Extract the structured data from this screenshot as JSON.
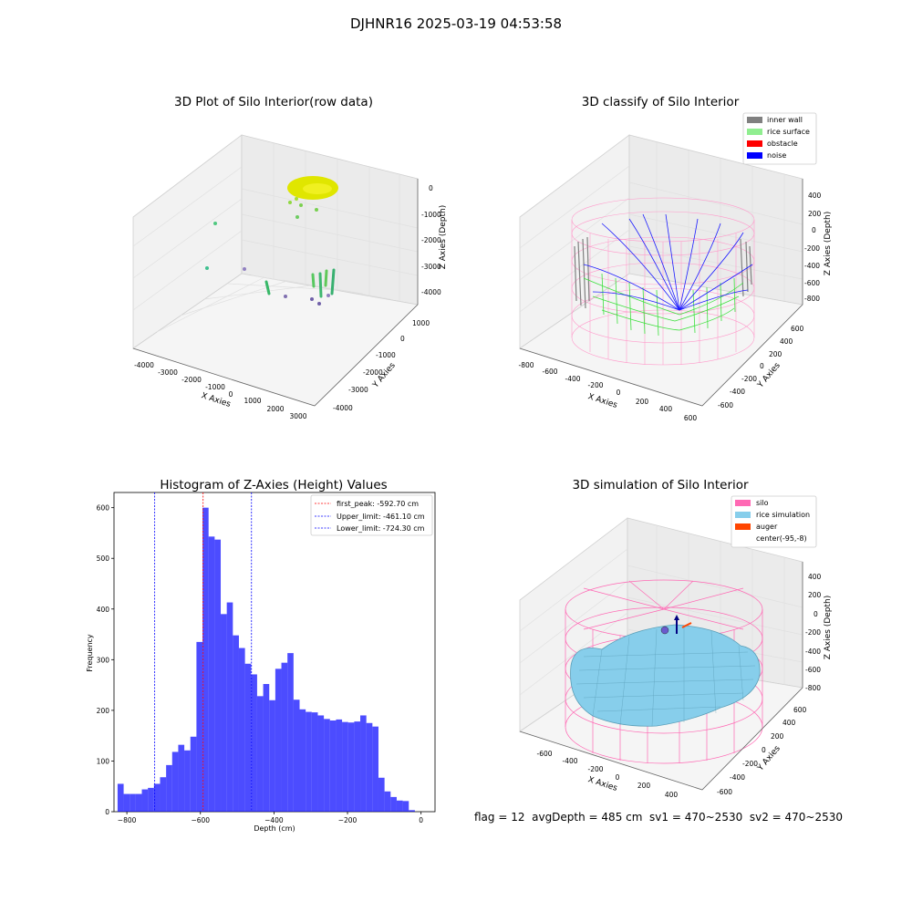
{
  "figure": {
    "title": "DJHNR16 2025-03-19 04:53:58",
    "footer": "flag = 12  avgDepth = 485 cm  sv1 = 470~2530  sv2 = 470~2530"
  },
  "panels": {
    "raw": {
      "title": "3D Plot of Silo Interior(row data)",
      "xlabel": "X Axies",
      "ylabel": "Y Axies",
      "zlabel": "Z Axies (Depth)",
      "xticks": [
        "-4000",
        "-3000",
        "-2000",
        "-1000",
        "0",
        "1000",
        "2000",
        "3000"
      ],
      "yticks": [
        "1000",
        "0",
        "-1000",
        "-2000",
        "-3000",
        "-4000"
      ],
      "zticks": [
        "0",
        "-1000",
        "-2000",
        "-3000",
        "-4000"
      ]
    },
    "classify": {
      "title": "3D classify of Silo Interior",
      "xlabel": "X Axies",
      "ylabel": "Y Axies",
      "zlabel": "Z Axies (Depth)",
      "xticks": [
        "-800",
        "-600",
        "-400",
        "-200",
        "0",
        "200",
        "400",
        "600"
      ],
      "yticks": [
        "600",
        "400",
        "200",
        "0",
        "-200",
        "-400",
        "-600"
      ],
      "zticks": [
        "400",
        "200",
        "0",
        "-200",
        "-400",
        "-600",
        "-800"
      ],
      "legend": [
        {
          "label": "inner wall",
          "color": "#808080"
        },
        {
          "label": "rice surface",
          "color": "#90ee90"
        },
        {
          "label": "obstacle",
          "color": "#ff0000"
        },
        {
          "label": "noise",
          "color": "#0000ff"
        }
      ]
    },
    "simulation": {
      "title": "3D simulation of Silo Interior",
      "xlabel": "X Axies",
      "ylabel": "Y Axies",
      "zlabel": "Z Axies (Depth)",
      "xticks": [
        "-600",
        "-400",
        "-200",
        "0",
        "200",
        "400"
      ],
      "yticks": [
        "600",
        "400",
        "200",
        "0",
        "-200",
        "-400",
        "-600"
      ],
      "zticks": [
        "400",
        "200",
        "0",
        "-200",
        "-400",
        "-600",
        "-800"
      ],
      "legend": [
        {
          "label": "silo",
          "color": "#ff69b4"
        },
        {
          "label": "rice simulation",
          "color": "#87ceeb"
        },
        {
          "label": "auger",
          "color": "#ff4500"
        },
        {
          "label": "center(-95,-8)",
          "color": ""
        }
      ]
    }
  },
  "chart_data": {
    "type": "bar",
    "title": "Histogram of Z-Axies (Height) Values",
    "xlabel": "Depth (cm)",
    "ylabel": "Frequency",
    "xlim": [
      -835,
      38
    ],
    "ylim": [
      0,
      630
    ],
    "xticks": [
      -800,
      -600,
      -400,
      -200,
      0
    ],
    "yticks": [
      0,
      100,
      200,
      300,
      400,
      500,
      600
    ],
    "bar_color": "#0000ff",
    "bin_start": -825.3,
    "bin_width": 16.5,
    "values": [
      55,
      35,
      35,
      35,
      44,
      47,
      55,
      68,
      92,
      118,
      132,
      121,
      148,
      335,
      600,
      543,
      537,
      390,
      413,
      348,
      323,
      292,
      271,
      228,
      252,
      220,
      282,
      294,
      313,
      221,
      202,
      197,
      196,
      190,
      183,
      180,
      182,
      177,
      176,
      178,
      190,
      175,
      168,
      67,
      40,
      29,
      22,
      21,
      3
    ],
    "vlines": [
      {
        "x": -592.7,
        "label": "first_peak: -592.70 cm",
        "color": "#ff0000"
      },
      {
        "x": -461.1,
        "label": "Upper_limit: -461.10 cm",
        "color": "#0000ff"
      },
      {
        "x": -724.3,
        "label": "Lower_limit: -724.30 cm",
        "color": "#0000ff"
      }
    ],
    "legend_position": "top-right"
  }
}
